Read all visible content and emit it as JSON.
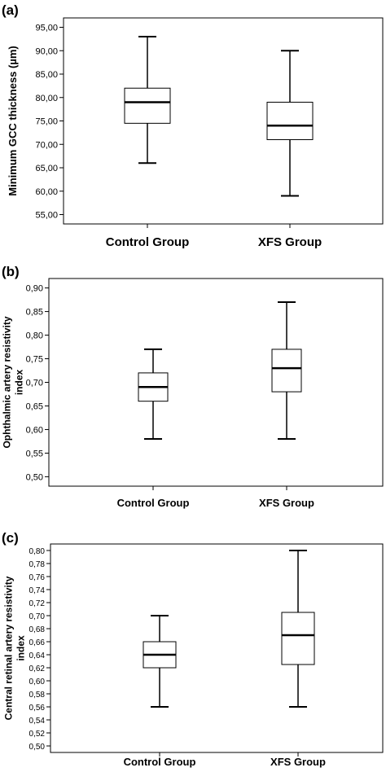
{
  "chart_data": [
    {
      "type": "box",
      "panel_label": "(a)",
      "ylabel": "Minimum GCC thickness (µm)",
      "ylim": [
        53,
        97
      ],
      "yticks": [
        95,
        90,
        85,
        80,
        75,
        70,
        65,
        60,
        55
      ],
      "ytick_labels": [
        "95,00",
        "90,00",
        "85,00",
        "80,00",
        "75,00",
        "70,00",
        "65,00",
        "60,00",
        "55,00"
      ],
      "categories": [
        "Control Group",
        "XFS Group"
      ],
      "boxes": [
        {
          "min": 66,
          "q1": 74.5,
          "median": 79,
          "q3": 82,
          "max": 93
        },
        {
          "min": 59,
          "q1": 71,
          "median": 74,
          "q3": 79,
          "max": 90
        }
      ]
    },
    {
      "type": "box",
      "panel_label": "(b)",
      "ylabel": [
        "Ophthalmic artery resistivity",
        "index"
      ],
      "ylim": [
        0.48,
        0.92
      ],
      "yticks": [
        0.9,
        0.85,
        0.8,
        0.75,
        0.7,
        0.65,
        0.6,
        0.55,
        0.5
      ],
      "ytick_labels": [
        "0,90",
        "0,85",
        "0,80",
        "0,75",
        "0,70",
        "0,65",
        "0,60",
        "0,55",
        "0,50"
      ],
      "categories": [
        "Control Group",
        "XFS Group"
      ],
      "boxes": [
        {
          "min": 0.58,
          "q1": 0.66,
          "median": 0.69,
          "q3": 0.72,
          "max": 0.77
        },
        {
          "min": 0.58,
          "q1": 0.68,
          "median": 0.73,
          "q3": 0.77,
          "max": 0.87
        }
      ]
    },
    {
      "type": "box",
      "panel_label": "(c)",
      "ylabel": [
        "Central retinal artery resistivity",
        "index"
      ],
      "ylim": [
        0.49,
        0.81
      ],
      "yticks": [
        0.8,
        0.78,
        0.76,
        0.74,
        0.72,
        0.7,
        0.68,
        0.66,
        0.64,
        0.62,
        0.6,
        0.58,
        0.56,
        0.54,
        0.52,
        0.5
      ],
      "ytick_labels": [
        "0,80",
        "0,78",
        "0,76",
        "0,74",
        "0,72",
        "0,70",
        "0,68",
        "0,66",
        "0,64",
        "0,62",
        "0,60",
        "0,58",
        "0,56",
        "0,54",
        "0,52",
        "0,50"
      ],
      "categories": [
        "Control Group",
        "XFS Group"
      ],
      "boxes": [
        {
          "min": 0.56,
          "q1": 0.62,
          "median": 0.64,
          "q3": 0.66,
          "max": 0.7
        },
        {
          "min": 0.56,
          "q1": 0.625,
          "median": 0.67,
          "q3": 0.705,
          "max": 0.8
        }
      ]
    }
  ]
}
